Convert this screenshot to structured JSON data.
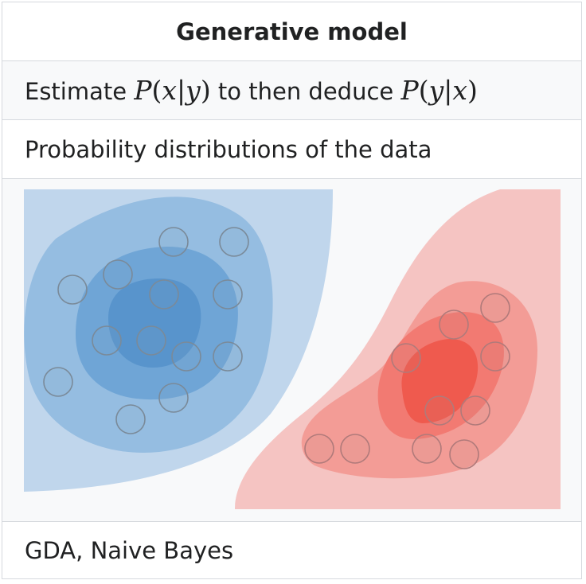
{
  "header": {
    "title": "Generative model"
  },
  "formula": {
    "prefix": "Estimate",
    "est_P": "P",
    "est_open": "(",
    "est_x": "x",
    "est_bar": "|",
    "est_y": "y",
    "est_close": ")",
    "middle": "to then deduce",
    "ded_P": "P",
    "ded_open": "(",
    "ded_y": "y",
    "ded_bar": "|",
    "ded_x": "x",
    "ded_close": ")"
  },
  "distribution_label": "Probability distributions of the data",
  "illustration": {
    "class_colors": {
      "blue": "#4a86c8",
      "red": "#ef5a4e"
    }
  },
  "footer": {
    "examples": "GDA, Naive Bayes"
  }
}
